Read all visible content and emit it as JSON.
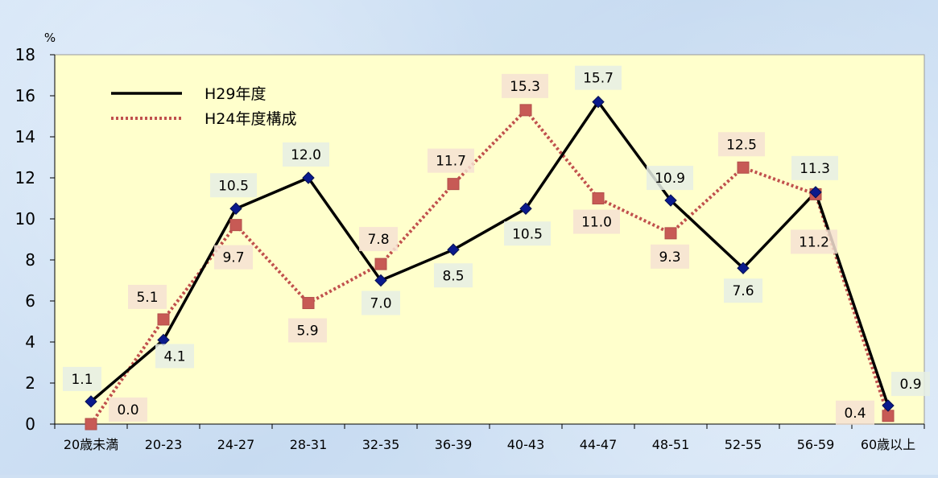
{
  "chart_data": {
    "type": "line",
    "ylabel": "%",
    "ylim": [
      0,
      18
    ],
    "yticks": [
      0,
      2,
      4,
      6,
      8,
      10,
      12,
      14,
      16,
      18
    ],
    "categories": [
      "20歳未満",
      "20-23",
      "24-27",
      "28-31",
      "32-35",
      "36-39",
      "40-43",
      "44-47",
      "48-51",
      "52-55",
      "56-59",
      "60歳以上"
    ],
    "series": [
      {
        "name": "H29年度",
        "values": [
          1.1,
          4.1,
          10.5,
          12.0,
          7.0,
          8.5,
          10.5,
          15.7,
          10.9,
          7.6,
          11.3,
          0.9
        ],
        "labels": [
          "1.1",
          "4.1",
          "10.5",
          "12.0",
          "7.0",
          "8.5",
          "10.5",
          "15.7",
          "10.9",
          "7.6",
          "11.3",
          "0.9"
        ],
        "color": "#000000",
        "marker_color": "#0a1a8c",
        "label_bg": "#e6efe4"
      },
      {
        "name": "H24年度構成",
        "values": [
          0.0,
          5.1,
          9.7,
          5.9,
          7.8,
          11.7,
          15.3,
          11.0,
          9.3,
          12.5,
          11.2,
          0.4
        ],
        "labels": [
          "0.0",
          "5.1",
          "9.7",
          "5.9",
          "7.8",
          "11.7",
          "15.3",
          "11.0",
          "9.3",
          "12.5",
          "11.2",
          "0.4"
        ],
        "color": "#c0504d",
        "marker_color": "#c75a55",
        "label_bg": "#f6e2d2"
      }
    ],
    "legend_position": "top-left",
    "plot_background": "#ffffcc"
  }
}
